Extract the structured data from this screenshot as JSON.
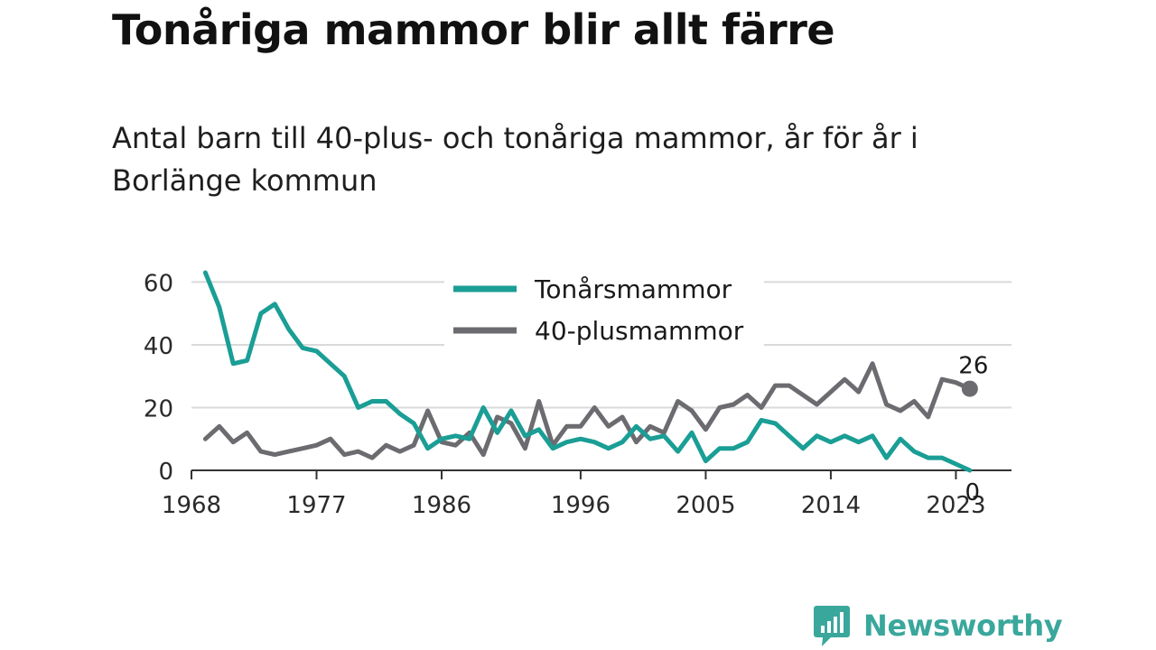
{
  "header": {
    "title": "Tonåriga mammor blir allt färre",
    "subtitle": "Antal barn till 40-plus- och tonåriga mammor, år för år i Borlänge kommun"
  },
  "brand": {
    "name": "Newsworthy",
    "color": "#3aa79c",
    "icon": "chart-bubble-icon"
  },
  "colors": {
    "teen": "#1a9e95",
    "forty": "#6b6b70",
    "grid": "#d9d9d9",
    "axis": "#333333"
  },
  "chart_data": {
    "type": "line",
    "x": [
      1969,
      1970,
      1971,
      1972,
      1973,
      1974,
      1975,
      1976,
      1977,
      1978,
      1979,
      1980,
      1981,
      1982,
      1983,
      1984,
      1985,
      1986,
      1987,
      1988,
      1989,
      1990,
      1991,
      1992,
      1993,
      1994,
      1995,
      1996,
      1997,
      1998,
      1999,
      2000,
      2001,
      2002,
      2003,
      2004,
      2005,
      2006,
      2007,
      2008,
      2009,
      2010,
      2011,
      2012,
      2013,
      2014,
      2015,
      2016,
      2017,
      2018,
      2019,
      2020,
      2021,
      2022,
      2023,
      2024
    ],
    "series": [
      {
        "name": "Tonårsmammor",
        "values": [
          63,
          52,
          34,
          35,
          50,
          53,
          45,
          39,
          38,
          34,
          30,
          20,
          22,
          22,
          18,
          15,
          7,
          10,
          11,
          10,
          20,
          12,
          19,
          11,
          13,
          7,
          9,
          10,
          9,
          7,
          9,
          14,
          10,
          11,
          6,
          12,
          3,
          7,
          7,
          9,
          16,
          15,
          11,
          7,
          11,
          9,
          11,
          9,
          11,
          4,
          10,
          6,
          4,
          4,
          2,
          0
        ]
      },
      {
        "name": "40-plusmammor",
        "values": [
          10,
          14,
          9,
          12,
          6,
          5,
          6,
          7,
          8,
          10,
          5,
          6,
          4,
          8,
          6,
          8,
          19,
          9,
          8,
          12,
          5,
          17,
          15,
          7,
          22,
          8,
          14,
          14,
          20,
          14,
          17,
          9,
          14,
          12,
          22,
          19,
          13,
          20,
          21,
          24,
          20,
          27,
          27,
          24,
          21,
          25,
          29,
          25,
          34,
          21,
          19,
          22,
          17,
          29,
          28,
          26
        ]
      }
    ],
    "x_ticks": [
      "1968",
      "1977",
      "1986",
      "1996",
      "2005",
      "2014",
      "2023"
    ],
    "y_ticks": [
      "0",
      "20",
      "40",
      "60"
    ],
    "ylim": [
      0,
      63
    ],
    "xlim": [
      1968,
      2027
    ],
    "end_labels": {
      "forty": "26",
      "teen": "0"
    },
    "legend": "top-center",
    "grid": "horizontal"
  }
}
